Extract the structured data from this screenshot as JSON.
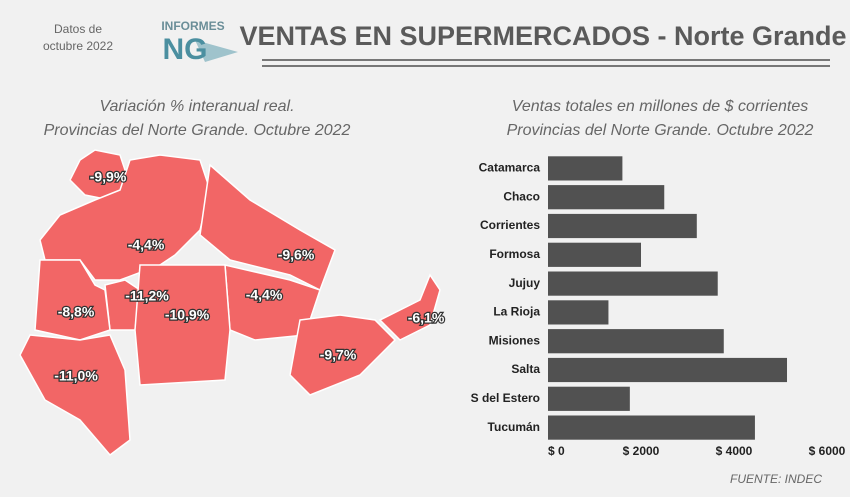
{
  "header": {
    "date": [
      "Datos de",
      "octubre 2022"
    ],
    "logo_top": "INFORMES",
    "logo_main": "NG",
    "title": "VENTAS EN SUPERMERCADOS - Norte Grande"
  },
  "map": {
    "title": "Variación % interanual real.",
    "subtitle": "Provincias del Norte Grande. Octubre 2022",
    "values": [
      -9.9,
      -4.4,
      -9.6,
      -11.2,
      -8.8,
      -10.9,
      -4.4,
      -6.1,
      -9.7,
      -11.0
    ],
    "value_labels": [
      "-9,9%",
      "-4,4%",
      "-9,6%",
      "-11,2%",
      "-8,8%",
      "-10,9%",
      "-4,4%",
      "-6,1%",
      "-9,7%",
      "-11,0%"
    ]
  },
  "chart_data": {
    "type": "hbar",
    "title": "Ventas totales en millones de $ corrientes",
    "subtitle": "Provincias del Norte Grande. Octubre 2022",
    "categories": [
      "Catamarca",
      "Chaco",
      "Corrientes",
      "Formosa",
      "Jujuy",
      "La Rioja",
      "Misiones",
      "Salta",
      "S del Estero",
      "Tucumán"
    ],
    "values": [
      1600,
      2500,
      3200,
      2000,
      3650,
      1300,
      3780,
      5140,
      1760,
      4450
    ],
    "color": "#515151",
    "xlim": [
      0,
      6000
    ],
    "xticks": [
      {
        "value": 0,
        "label": "$ 0"
      },
      {
        "value": 2000,
        "label": "$ 2000"
      },
      {
        "value": 4000,
        "label": "$ 4000"
      },
      {
        "value": 6000,
        "label": "$ 6000"
      }
    ],
    "source": "FUENTE: INDEC"
  }
}
